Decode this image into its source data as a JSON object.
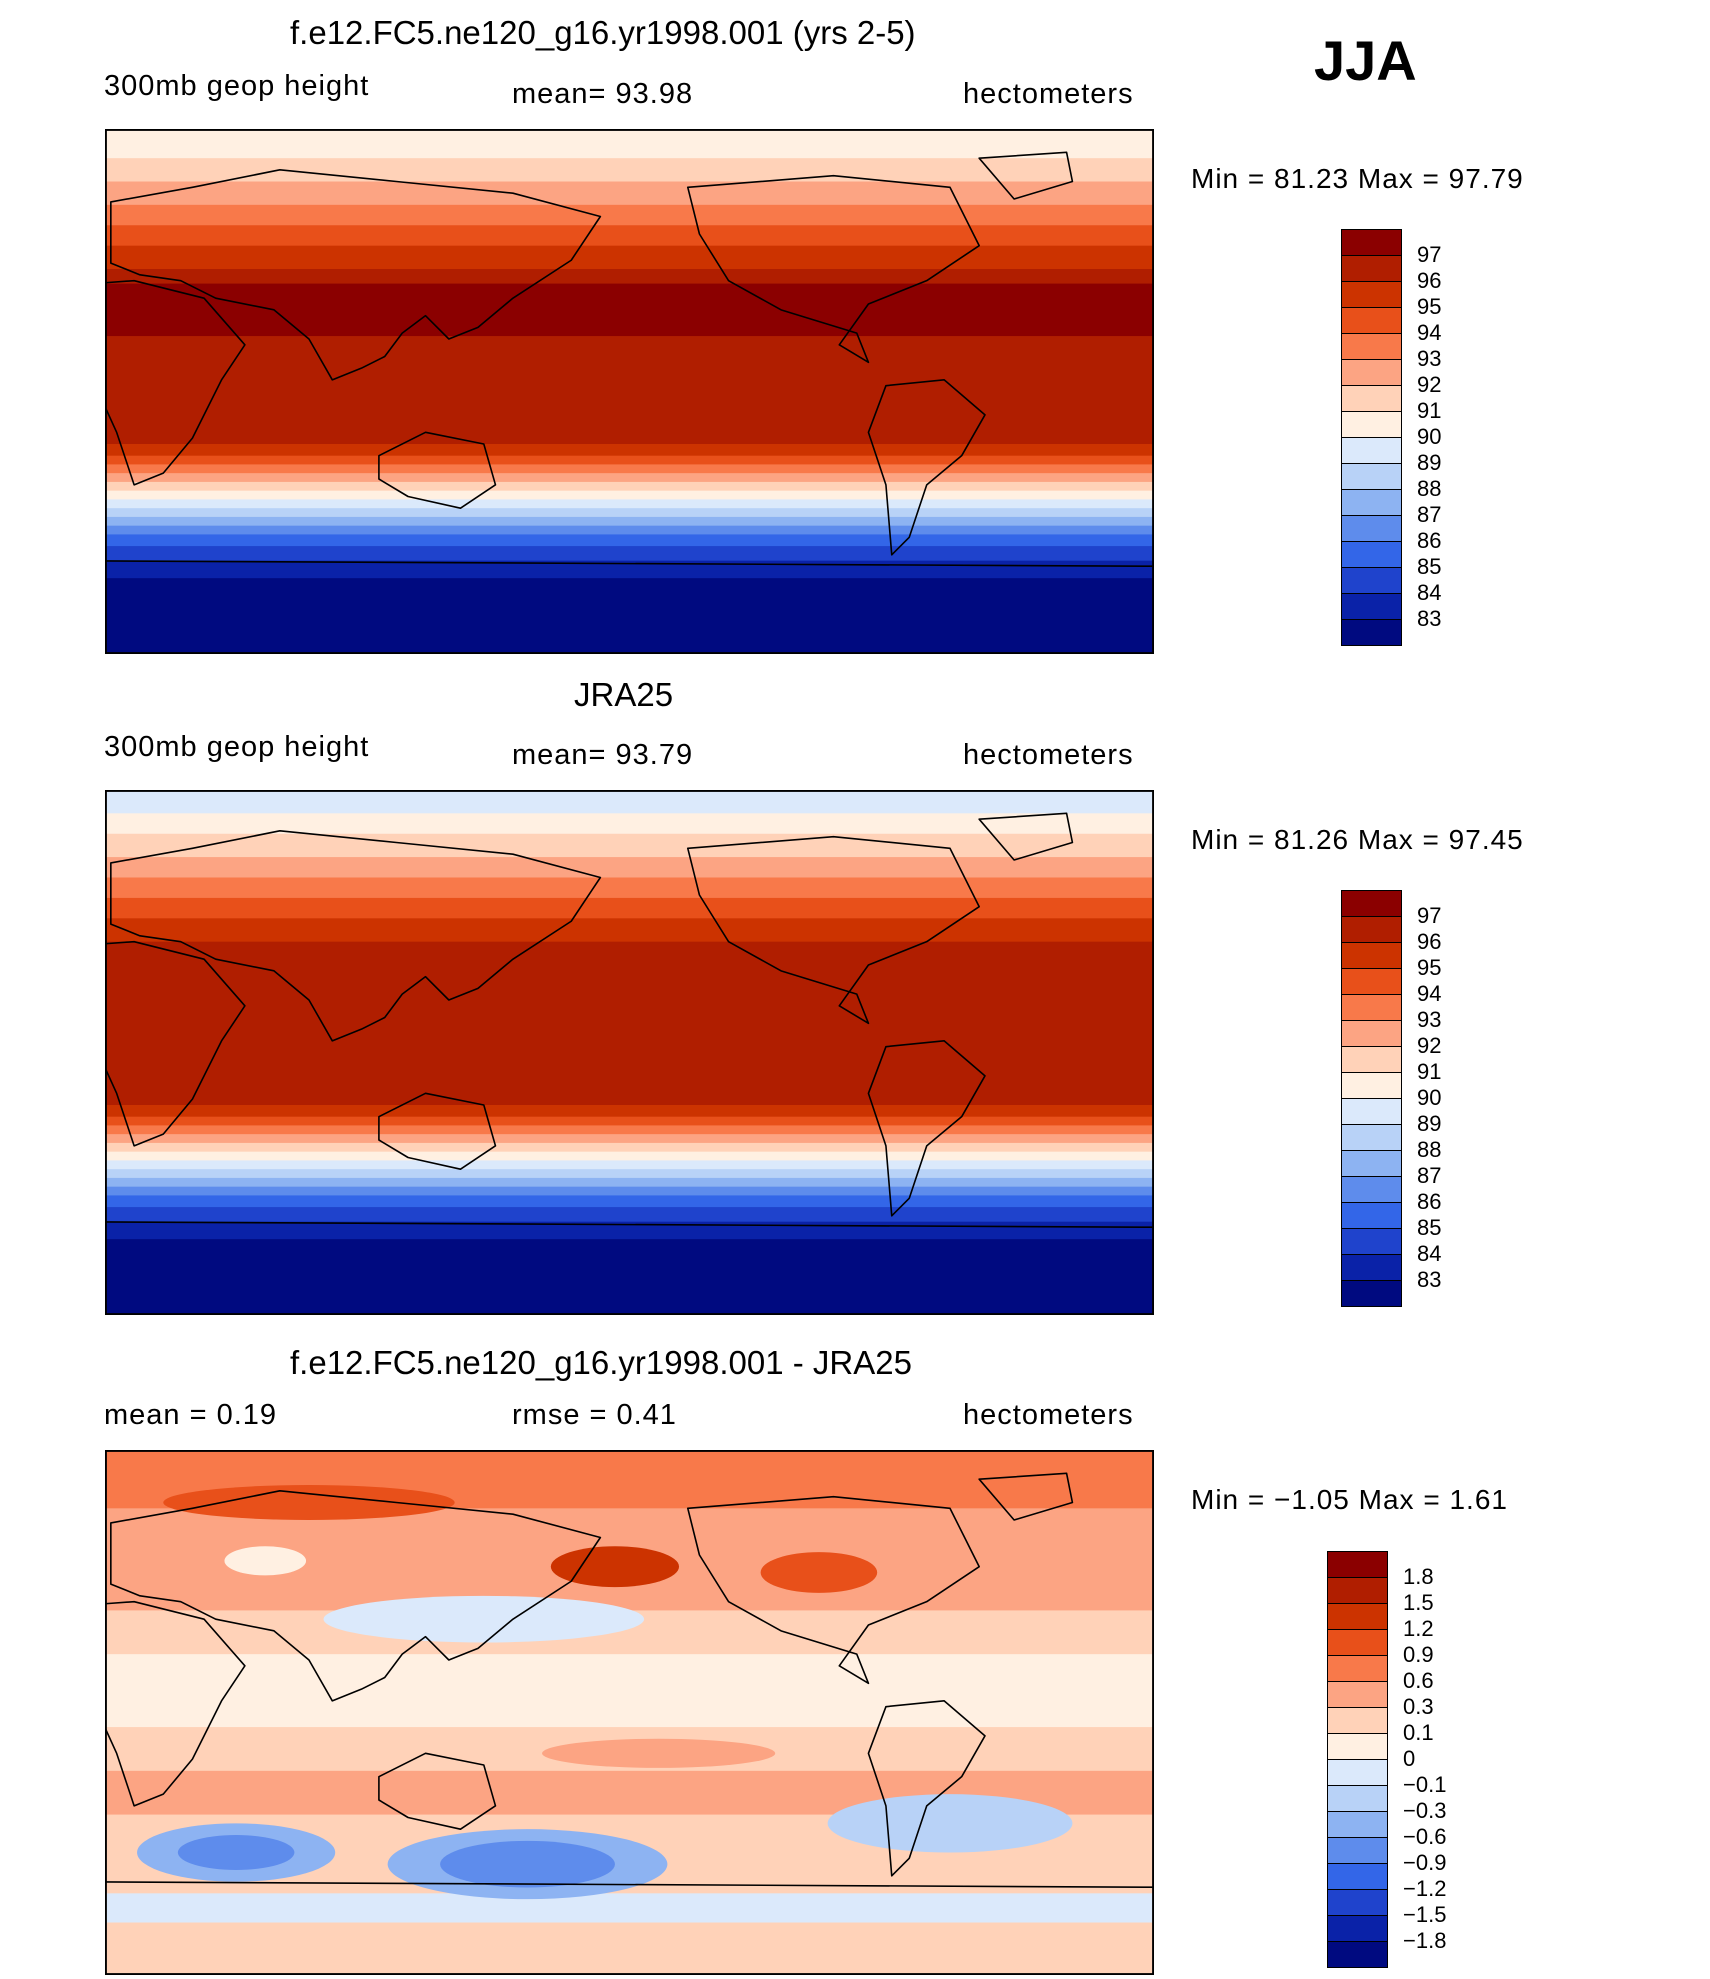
{
  "season": "JJA",
  "panels": [
    {
      "id": "model",
      "title": "f.e12.FC5.ne120_g16.yr1998.001 (yrs 2-5)",
      "left_label": "300mb geop height",
      "center_label": "mean=   93.98",
      "units": "hectometers",
      "min_max": "Min =   81.23 Max =   97.79",
      "colorbar": {
        "labels": [
          "97",
          "96",
          "95",
          "94",
          "93",
          "92",
          "91",
          "90",
          "89",
          "88",
          "87",
          "86",
          "85",
          "84",
          "83"
        ],
        "colors": [
          "#8b0000",
          "#b01e00",
          "#cc3300",
          "#e8501a",
          "#f8794a",
          "#fca483",
          "#ffd2b8",
          "#fff0e2",
          "#dbe9fb",
          "#b8d2f7",
          "#8db3f2",
          "#5e8cec",
          "#3366e8",
          "#1f43cc",
          "#0a22a8",
          "#000a80"
        ]
      },
      "bands": [
        {
          "lat": 90,
          "color": "#fff0e2"
        },
        {
          "lat": 80,
          "color": "#ffd2b8"
        },
        {
          "lat": 72,
          "color": "#fca483"
        },
        {
          "lat": 64,
          "color": "#f8794a"
        },
        {
          "lat": 57,
          "color": "#e8501a"
        },
        {
          "lat": 50,
          "color": "#cc3300"
        },
        {
          "lat": 42,
          "color": "#b01e00"
        },
        {
          "lat": 37,
          "color": "#8b0000"
        },
        {
          "lat": 19,
          "color": "#b01e00"
        },
        {
          "lat": -18,
          "color": "#cc3300"
        },
        {
          "lat": -22,
          "color": "#e8501a"
        },
        {
          "lat": -25,
          "color": "#f8794a"
        },
        {
          "lat": -28,
          "color": "#fca483"
        },
        {
          "lat": -31,
          "color": "#ffd2b8"
        },
        {
          "lat": -34,
          "color": "#fff0e2"
        },
        {
          "lat": -37,
          "color": "#dbe9fb"
        },
        {
          "lat": -40,
          "color": "#b8d2f7"
        },
        {
          "lat": -43,
          "color": "#8db3f2"
        },
        {
          "lat": -46,
          "color": "#5e8cec"
        },
        {
          "lat": -49,
          "color": "#3366e8"
        },
        {
          "lat": -53,
          "color": "#1f43cc"
        },
        {
          "lat": -58,
          "color": "#0a22a8"
        },
        {
          "lat": -64,
          "color": "#000a80"
        }
      ]
    },
    {
      "id": "obs",
      "title": "JRA25",
      "left_label": "300mb geop height",
      "center_label": "mean=   93.79",
      "units": "hectometers",
      "min_max": "Min =   81.26 Max =   97.45",
      "colorbar": {
        "labels": [
          "97",
          "96",
          "95",
          "94",
          "93",
          "92",
          "91",
          "90",
          "89",
          "88",
          "87",
          "86",
          "85",
          "84",
          "83"
        ],
        "colors": [
          "#8b0000",
          "#b01e00",
          "#cc3300",
          "#e8501a",
          "#f8794a",
          "#fca483",
          "#ffd2b8",
          "#fff0e2",
          "#dbe9fb",
          "#b8d2f7",
          "#8db3f2",
          "#5e8cec",
          "#3366e8",
          "#1f43cc",
          "#0a22a8",
          "#000a80"
        ]
      },
      "bands": [
        {
          "lat": 90,
          "color": "#dbe9fb"
        },
        {
          "lat": 82,
          "color": "#fff0e2"
        },
        {
          "lat": 75,
          "color": "#ffd2b8"
        },
        {
          "lat": 67,
          "color": "#fca483"
        },
        {
          "lat": 60,
          "color": "#f8794a"
        },
        {
          "lat": 53,
          "color": "#e8501a"
        },
        {
          "lat": 46,
          "color": "#cc3300"
        },
        {
          "lat": 38,
          "color": "#b01e00"
        },
        {
          "lat": -18,
          "color": "#cc3300"
        },
        {
          "lat": -22,
          "color": "#e8501a"
        },
        {
          "lat": -25,
          "color": "#f8794a"
        },
        {
          "lat": -28,
          "color": "#fca483"
        },
        {
          "lat": -31,
          "color": "#ffd2b8"
        },
        {
          "lat": -34,
          "color": "#fff0e2"
        },
        {
          "lat": -37,
          "color": "#dbe9fb"
        },
        {
          "lat": -40,
          "color": "#b8d2f7"
        },
        {
          "lat": -43,
          "color": "#8db3f2"
        },
        {
          "lat": -46,
          "color": "#5e8cec"
        },
        {
          "lat": -49,
          "color": "#3366e8"
        },
        {
          "lat": -53,
          "color": "#1f43cc"
        },
        {
          "lat": -58,
          "color": "#0a22a8"
        },
        {
          "lat": -64,
          "color": "#000a80"
        }
      ]
    },
    {
      "id": "diff",
      "title": "f.e12.FC5.ne120_g16.yr1998.001 - JRA25",
      "left_label": "mean =     0.19",
      "center_label": "rmse =     0.41",
      "units": "hectometers",
      "min_max": "Min =   −1.05 Max =     1.61",
      "colorbar": {
        "labels": [
          "1.8",
          "1.5",
          "1.2",
          "0.9",
          "0.6",
          "0.3",
          "0.1",
          "0",
          "−0.1",
          "−0.3",
          "−0.6",
          "−0.9",
          "−1.2",
          "−1.5",
          "−1.8"
        ],
        "colors": [
          "#8b0000",
          "#b01e00",
          "#cc3300",
          "#e8501a",
          "#f8794a",
          "#fca483",
          "#ffd2b8",
          "#fff0e2",
          "#dbe9fb",
          "#b8d2f7",
          "#8db3f2",
          "#5e8cec",
          "#3366e8",
          "#1f43cc",
          "#0a22a8",
          "#000a80"
        ]
      },
      "bands": [
        {
          "lat": 90,
          "color": "#f8794a"
        },
        {
          "lat": 70,
          "color": "#fca483"
        },
        {
          "lat": 35,
          "color": "#ffd2b8"
        },
        {
          "lat": 20,
          "color": "#fff0e2"
        },
        {
          "lat": -5,
          "color": "#ffd2b8"
        },
        {
          "lat": -20,
          "color": "#fca483"
        },
        {
          "lat": -35,
          "color": "#ffd2b8"
        },
        {
          "lat": -62,
          "color": "#dbe9fb"
        },
        {
          "lat": -72,
          "color": "#ffd2b8"
        }
      ]
    }
  ]
}
